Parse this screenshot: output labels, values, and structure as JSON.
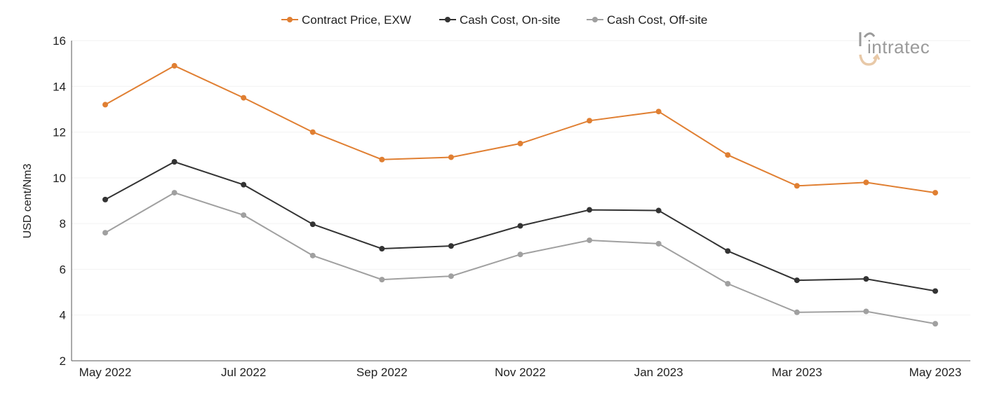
{
  "logo": {
    "text": "intratec"
  },
  "chart_data": {
    "type": "line",
    "title": "",
    "xlabel": "",
    "ylabel": "USD cent/Nm3",
    "ylim": [
      2,
      16
    ],
    "yticks": [
      2,
      4,
      6,
      8,
      10,
      12,
      14,
      16
    ],
    "grid": true,
    "legend_position": "top-center",
    "x": [
      "May 2022",
      "Jun 2022",
      "Jul 2022",
      "Aug 2022",
      "Sep 2022",
      "Oct 2022",
      "Nov 2022",
      "Dec 2022",
      "Jan 2023",
      "Feb 2023",
      "Mar 2023",
      "Apr 2023",
      "May 2023"
    ],
    "x_tick_labels": [
      "May 2022",
      "",
      "Jul 2022",
      "",
      "Sep 2022",
      "",
      "Nov 2022",
      "",
      "Jan 2023",
      "",
      "Mar 2023",
      "",
      "May 2023"
    ],
    "series": [
      {
        "name": "Contract Price, EXW",
        "color": "#e07f32",
        "values": [
          13.2,
          14.9,
          13.5,
          12.0,
          10.8,
          10.9,
          11.5,
          12.5,
          12.9,
          11.0,
          9.65,
          9.8,
          9.35
        ]
      },
      {
        "name": "Cash Cost, On-site",
        "color": "#333333",
        "values": [
          9.05,
          10.7,
          9.7,
          7.97,
          6.9,
          7.02,
          7.9,
          8.6,
          8.57,
          6.8,
          5.52,
          5.58,
          5.05
        ]
      },
      {
        "name": "Cash Cost, Off-site",
        "color": "#a0a0a0",
        "values": [
          7.6,
          9.35,
          8.37,
          6.6,
          5.55,
          5.7,
          6.65,
          7.27,
          7.12,
          5.37,
          4.12,
          4.16,
          3.62
        ]
      }
    ]
  }
}
